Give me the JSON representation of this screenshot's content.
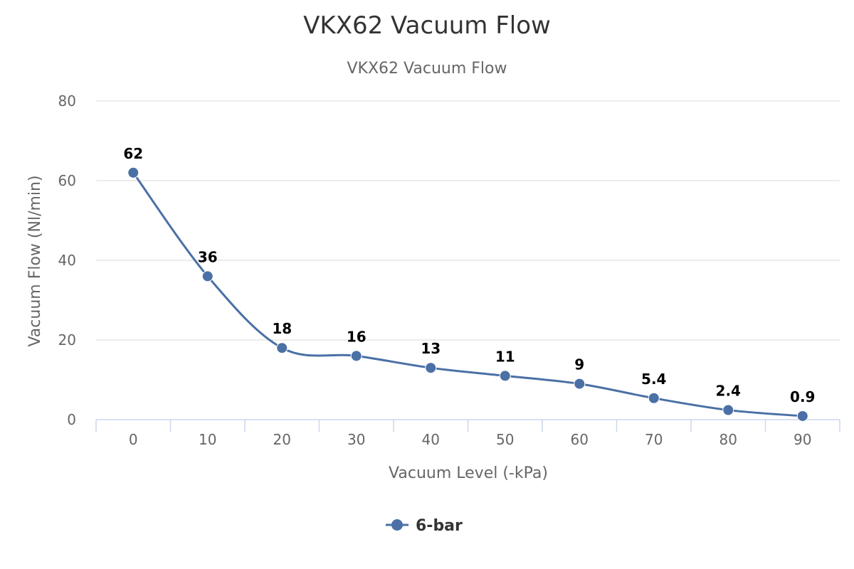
{
  "chart_data": {
    "type": "line",
    "title": "VKX62 Vacuum Flow",
    "subtitle": "VKX62 Vacuum Flow",
    "xlabel": "Vacuum Level (-kPa)",
    "ylabel": "Vacuum Flow (Nl/min)",
    "categories": [
      "0",
      "10",
      "20",
      "30",
      "40",
      "50",
      "60",
      "70",
      "80",
      "90"
    ],
    "yticks": [
      "0",
      "20",
      "40",
      "60",
      "80"
    ],
    "ylim": [
      0,
      80
    ],
    "grid": true,
    "legend_position": "bottom",
    "series": [
      {
        "name": "6-bar",
        "color": "#4a70a5",
        "values": [
          62,
          36,
          18,
          16,
          13,
          11,
          9,
          5.4,
          2.4,
          0.9
        ],
        "labels": [
          "62",
          "36",
          "18",
          "16",
          "13",
          "11",
          "9",
          "5.4",
          "2.4",
          "0.9"
        ]
      }
    ]
  }
}
